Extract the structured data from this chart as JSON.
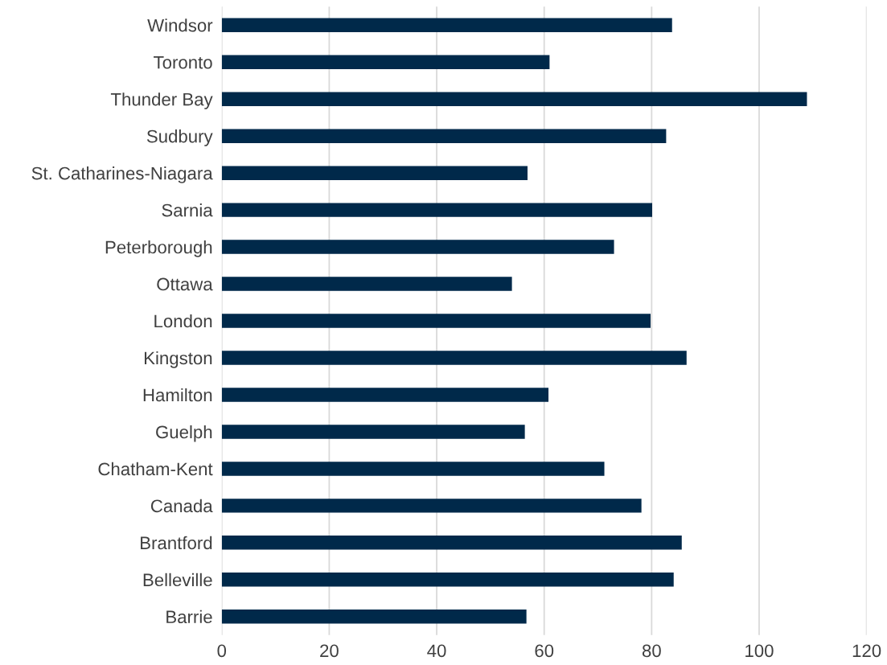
{
  "chart_data": {
    "type": "bar",
    "orientation": "horizontal",
    "categories": [
      "Windsor",
      "Toronto",
      "Thunder Bay",
      "Sudbury",
      "St. Catharines-Niagara",
      "Sarnia",
      "Peterborough",
      "Ottawa",
      "London",
      "Kingston",
      "Hamilton",
      "Guelph",
      "Chatham-Kent",
      "Canada",
      "Brantford",
      "Belleville",
      "Barrie"
    ],
    "values": [
      83.8,
      61.0,
      108.9,
      82.7,
      56.9,
      80.1,
      73.0,
      54.0,
      79.8,
      86.5,
      60.8,
      56.4,
      71.2,
      78.1,
      85.6,
      84.1,
      56.7
    ],
    "color": "#00294a",
    "xlim": [
      0,
      120
    ],
    "xticks": [
      0,
      20,
      40,
      60,
      80,
      100,
      120
    ],
    "grid": "x"
  }
}
